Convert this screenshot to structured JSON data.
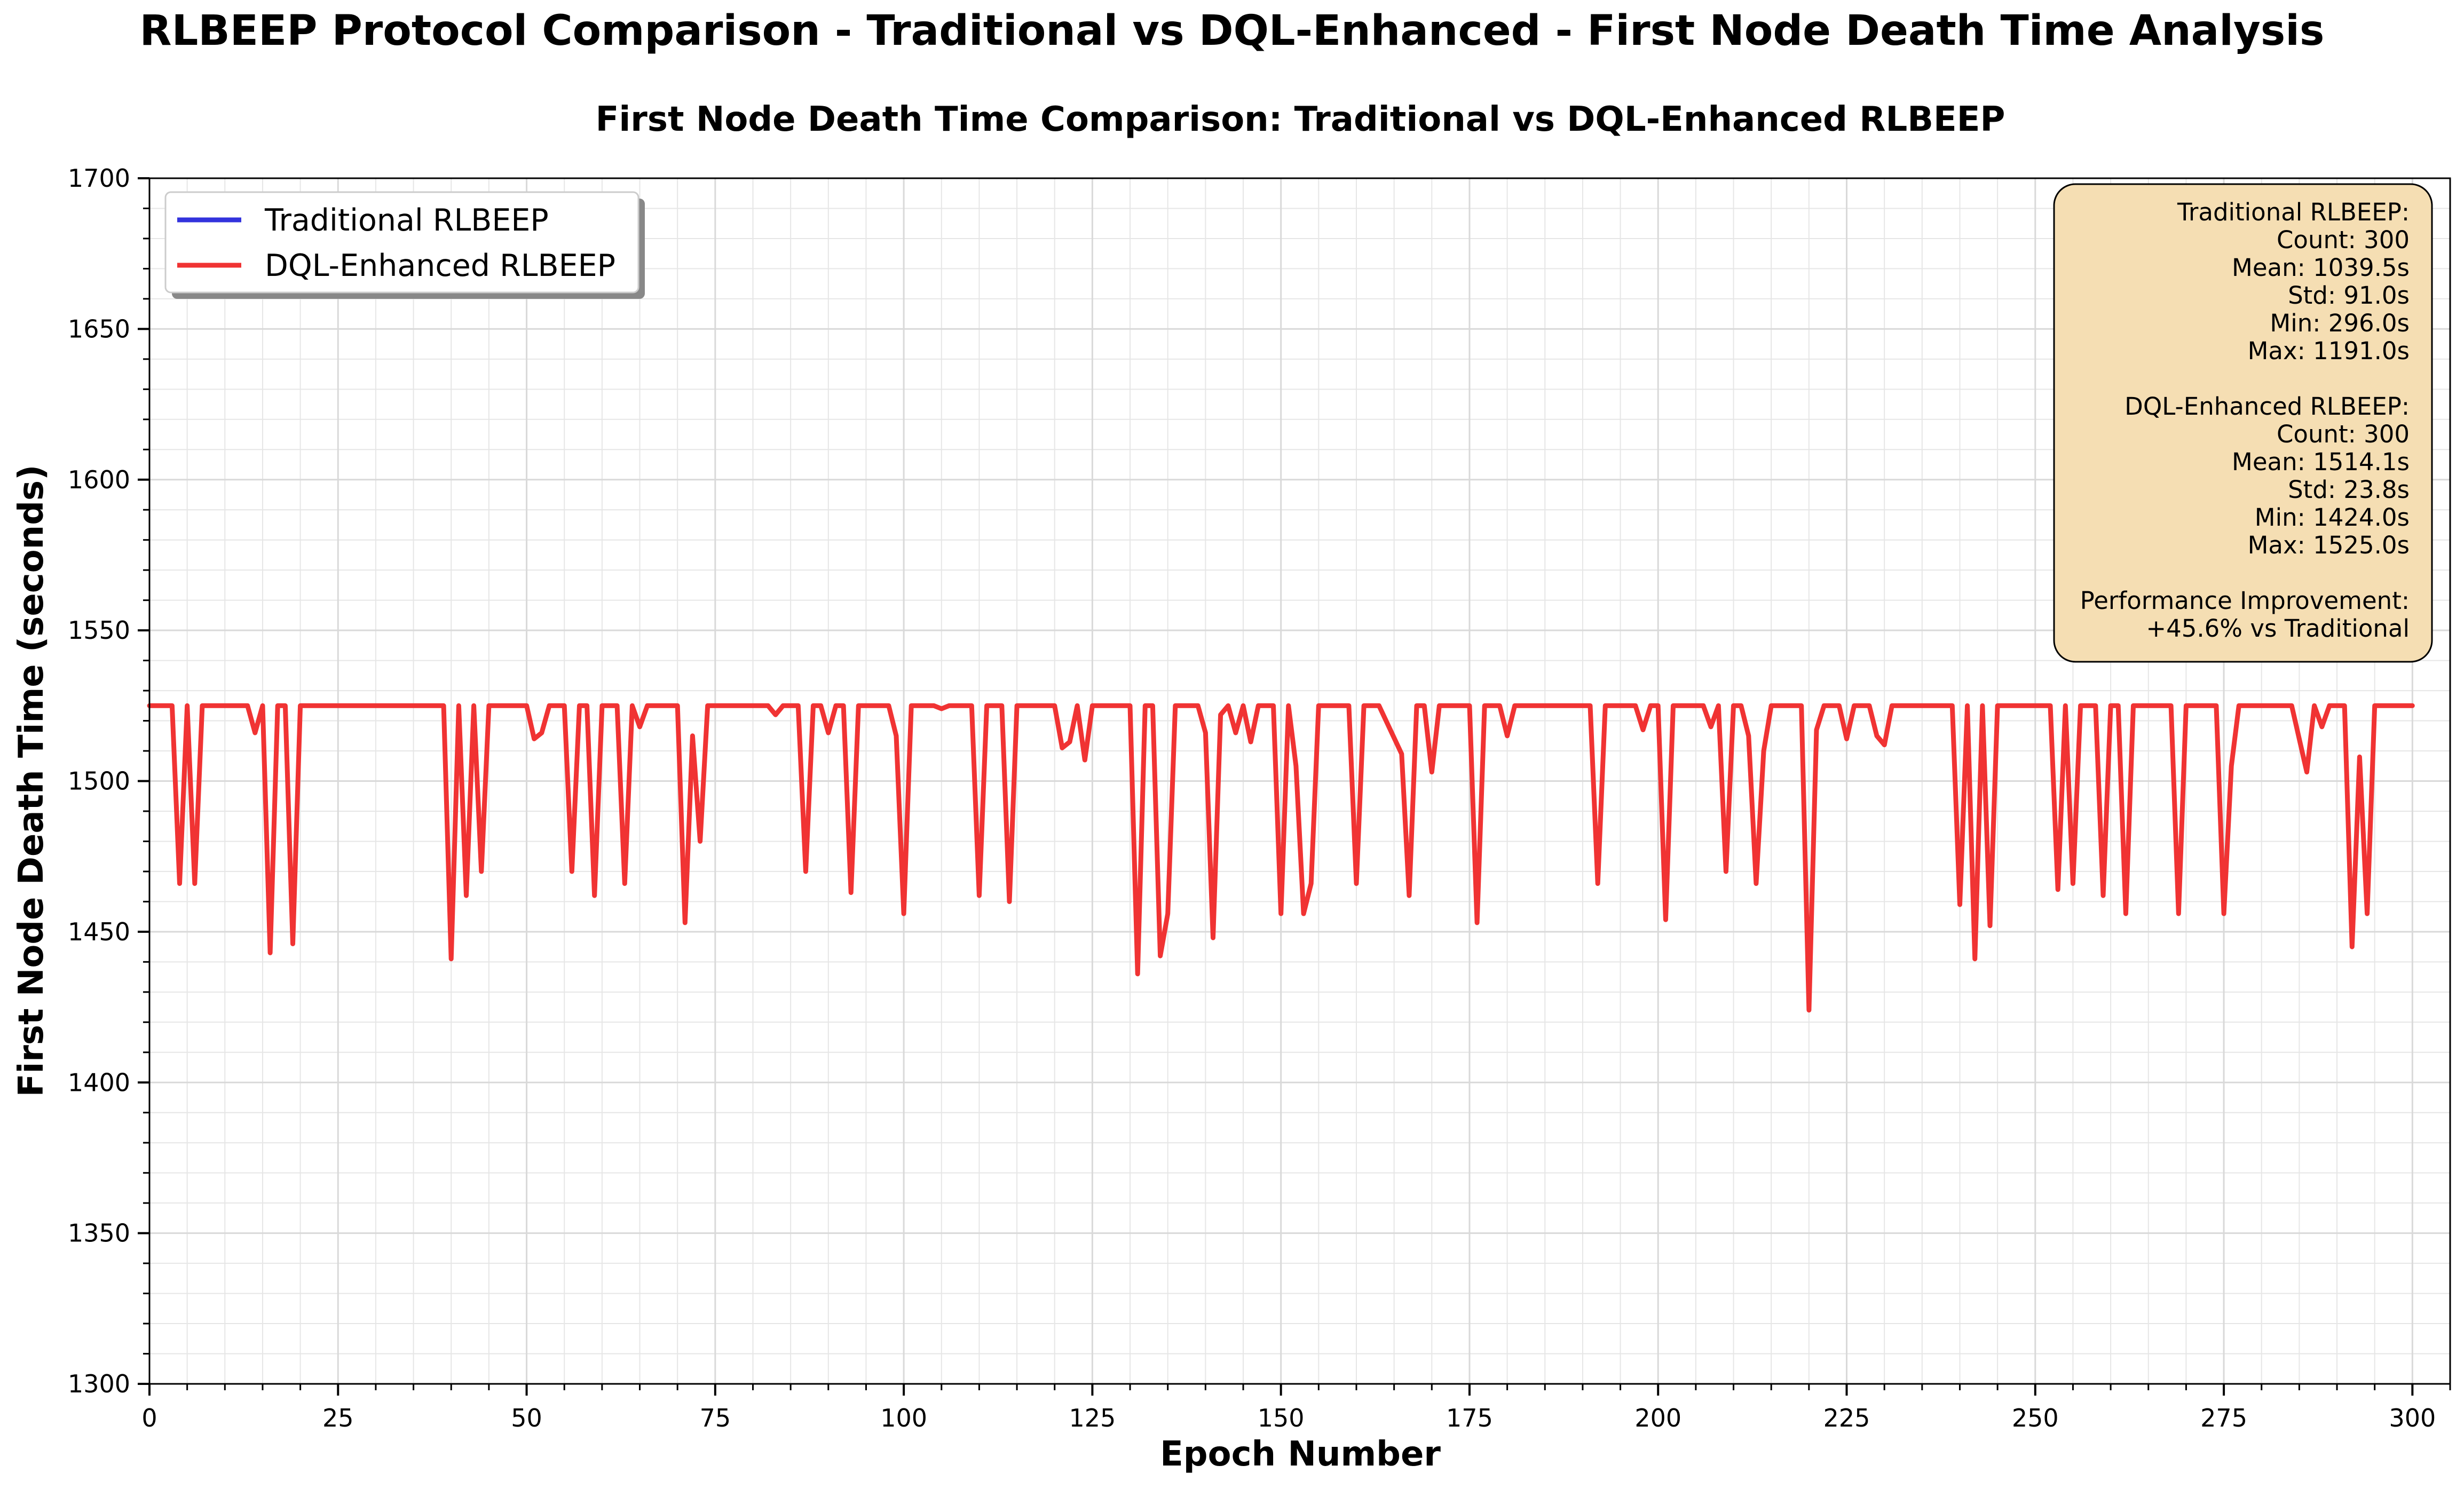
{
  "figure": {
    "suptitle": "RLBEEP Protocol Comparison - Traditional vs DQL-Enhanced - First Node Death Time Analysis"
  },
  "chart_data": {
    "type": "line",
    "title": "First Node Death Time Comparison: Traditional vs DQL-Enhanced RLBEEP",
    "xlabel": "Epoch Number",
    "ylabel": "First Node Death Time (seconds)",
    "xlim": [
      0,
      305
    ],
    "ylim": [
      1300,
      1700
    ],
    "x_ticks": [
      0,
      25,
      50,
      75,
      100,
      125,
      150,
      175,
      200,
      225,
      250,
      275,
      300
    ],
    "y_ticks": [
      1300,
      1350,
      1400,
      1450,
      1500,
      1550,
      1600,
      1650,
      1700
    ],
    "grid": true,
    "legend_position": "upper left",
    "series": [
      {
        "name": "Traditional RLBEEP",
        "color": "#3333dd",
        "points": []
      },
      {
        "name": "DQL-Enhanced RLBEEP",
        "color": "#f03333",
        "points": [
          [
            0,
            1525
          ],
          [
            3,
            1525
          ],
          [
            4,
            1466
          ],
          [
            5,
            1525
          ],
          [
            6,
            1466
          ],
          [
            7,
            1525
          ],
          [
            13,
            1525
          ],
          [
            14,
            1516
          ],
          [
            15,
            1525
          ],
          [
            16,
            1443
          ],
          [
            17,
            1525
          ],
          [
            18,
            1525
          ],
          [
            19,
            1446
          ],
          [
            20,
            1525
          ],
          [
            39,
            1525
          ],
          [
            40,
            1441
          ],
          [
            41,
            1525
          ],
          [
            42,
            1462
          ],
          [
            43,
            1525
          ],
          [
            44,
            1470
          ],
          [
            45,
            1525
          ],
          [
            50,
            1525
          ],
          [
            51,
            1514
          ],
          [
            52,
            1516
          ],
          [
            53,
            1525
          ],
          [
            55,
            1525
          ],
          [
            56,
            1470
          ],
          [
            57,
            1525
          ],
          [
            58,
            1525
          ],
          [
            59,
            1462
          ],
          [
            60,
            1525
          ],
          [
            62,
            1525
          ],
          [
            63,
            1466
          ],
          [
            64,
            1525
          ],
          [
            65,
            1518
          ],
          [
            66,
            1525
          ],
          [
            70,
            1525
          ],
          [
            71,
            1453
          ],
          [
            72,
            1515
          ],
          [
            73,
            1480
          ],
          [
            74,
            1525
          ],
          [
            82,
            1525
          ],
          [
            83,
            1522
          ],
          [
            84,
            1525
          ],
          [
            86,
            1525
          ],
          [
            87,
            1470
          ],
          [
            88,
            1525
          ],
          [
            89,
            1525
          ],
          [
            90,
            1516
          ],
          [
            91,
            1525
          ],
          [
            92,
            1525
          ],
          [
            93,
            1463
          ],
          [
            94,
            1525
          ],
          [
            98,
            1525
          ],
          [
            99,
            1515
          ],
          [
            100,
            1456
          ],
          [
            101,
            1525
          ],
          [
            104,
            1525
          ],
          [
            105,
            1524
          ],
          [
            106,
            1525
          ],
          [
            109,
            1525
          ],
          [
            110,
            1462
          ],
          [
            111,
            1525
          ],
          [
            113,
            1525
          ],
          [
            114,
            1460
          ],
          [
            115,
            1525
          ],
          [
            120,
            1525
          ],
          [
            121,
            1511
          ],
          [
            122,
            1513
          ],
          [
            123,
            1525
          ],
          [
            124,
            1507
          ],
          [
            125,
            1525
          ],
          [
            130,
            1525
          ],
          [
            131,
            1436
          ],
          [
            132,
            1525
          ],
          [
            133,
            1525
          ],
          [
            134,
            1442
          ],
          [
            135,
            1456
          ],
          [
            136,
            1525
          ],
          [
            139,
            1525
          ],
          [
            140,
            1516
          ],
          [
            141,
            1448
          ],
          [
            142,
            1522
          ],
          [
            143,
            1525
          ],
          [
            144,
            1516
          ],
          [
            145,
            1525
          ],
          [
            146,
            1513
          ],
          [
            147,
            1525
          ],
          [
            149,
            1525
          ],
          [
            150,
            1456
          ],
          [
            151,
            1525
          ],
          [
            152,
            1505
          ],
          [
            153,
            1456
          ],
          [
            154,
            1466
          ],
          [
            155,
            1525
          ],
          [
            159,
            1525
          ],
          [
            160,
            1466
          ],
          [
            161,
            1525
          ],
          [
            163,
            1525
          ],
          [
            166,
            1509
          ],
          [
            167,
            1462
          ],
          [
            168,
            1525
          ],
          [
            169,
            1525
          ],
          [
            170,
            1503
          ],
          [
            171,
            1525
          ],
          [
            175,
            1525
          ],
          [
            176,
            1453
          ],
          [
            177,
            1525
          ],
          [
            179,
            1525
          ],
          [
            180,
            1515
          ],
          [
            181,
            1525
          ],
          [
            191,
            1525
          ],
          [
            192,
            1466
          ],
          [
            193,
            1525
          ],
          [
            197,
            1525
          ],
          [
            198,
            1517
          ],
          [
            199,
            1525
          ],
          [
            200,
            1525
          ],
          [
            201,
            1454
          ],
          [
            202,
            1525
          ],
          [
            206,
            1525
          ],
          [
            207,
            1518
          ],
          [
            208,
            1525
          ],
          [
            209,
            1470
          ],
          [
            210,
            1525
          ],
          [
            211,
            1525
          ],
          [
            212,
            1515
          ],
          [
            213,
            1466
          ],
          [
            214,
            1510
          ],
          [
            215,
            1525
          ],
          [
            219,
            1525
          ],
          [
            220,
            1424
          ],
          [
            221,
            1517
          ],
          [
            222,
            1525
          ],
          [
            224,
            1525
          ],
          [
            225,
            1514
          ],
          [
            226,
            1525
          ],
          [
            228,
            1525
          ],
          [
            229,
            1515
          ],
          [
            230,
            1512
          ],
          [
            231,
            1525
          ],
          [
            239,
            1525
          ],
          [
            240,
            1459
          ],
          [
            241,
            1525
          ],
          [
            242,
            1441
          ],
          [
            243,
            1525
          ],
          [
            244,
            1452
          ],
          [
            245,
            1525
          ],
          [
            252,
            1525
          ],
          [
            253,
            1464
          ],
          [
            254,
            1525
          ],
          [
            255,
            1466
          ],
          [
            256,
            1525
          ],
          [
            258,
            1525
          ],
          [
            259,
            1462
          ],
          [
            260,
            1525
          ],
          [
            261,
            1525
          ],
          [
            262,
            1456
          ],
          [
            263,
            1525
          ],
          [
            268,
            1525
          ],
          [
            269,
            1456
          ],
          [
            270,
            1525
          ],
          [
            274,
            1525
          ],
          [
            275,
            1456
          ],
          [
            276,
            1505
          ],
          [
            277,
            1525
          ],
          [
            284,
            1525
          ],
          [
            286,
            1503
          ],
          [
            287,
            1525
          ],
          [
            288,
            1518
          ],
          [
            289,
            1525
          ],
          [
            291,
            1525
          ],
          [
            292,
            1445
          ],
          [
            293,
            1508
          ],
          [
            294,
            1456
          ],
          [
            295,
            1525
          ],
          [
            305,
            1525
          ]
        ]
      }
    ]
  },
  "stats_box": {
    "traditional": {
      "header": "Traditional RLBEEP:",
      "count": "Count: 300",
      "mean": "Mean: 1039.5s",
      "std": "Std: 91.0s",
      "min": "Min: 296.0s",
      "max": "Max: 1191.0s"
    },
    "dql": {
      "header": "DQL-Enhanced RLBEEP:",
      "count": "Count: 300",
      "mean": "Mean: 1514.1s",
      "std": "Std: 23.8s",
      "min": "Min: 1424.0s",
      "max": "Max: 1525.0s"
    },
    "improvement": {
      "header": "Performance Improvement:",
      "value": "+45.6% vs Traditional"
    }
  }
}
